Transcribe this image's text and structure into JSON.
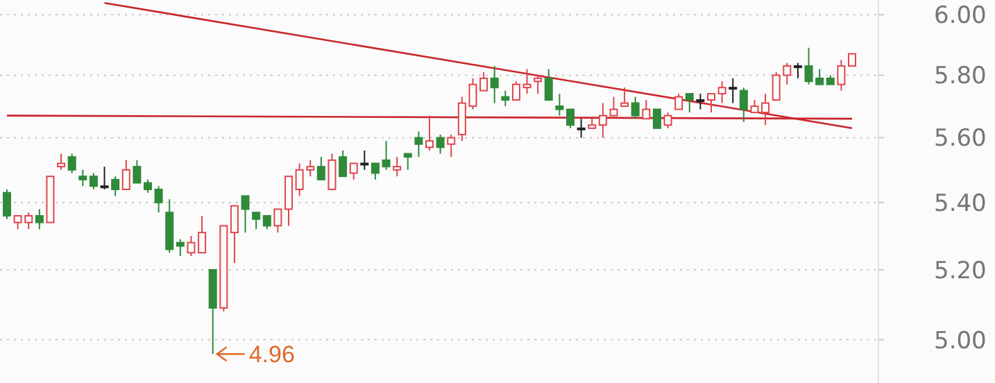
{
  "chart_data": {
    "type": "candlestick",
    "categories": [
      null,
      null,
      null,
      null,
      null,
      null,
      null,
      null,
      null,
      null,
      null,
      null,
      null,
      null,
      null,
      null,
      null,
      null,
      null,
      null,
      null,
      null,
      null,
      null,
      null,
      null,
      null,
      null,
      null,
      null,
      null,
      null,
      null,
      null,
      null,
      null,
      null,
      null,
      null,
      null,
      null,
      null,
      null,
      null,
      null,
      null,
      null,
      null,
      null,
      null,
      null,
      null,
      null,
      null,
      null,
      null,
      null,
      null,
      null,
      null,
      null,
      null,
      null,
      null,
      null,
      null,
      null,
      null,
      null,
      null,
      null,
      null,
      null,
      null,
      null,
      null,
      null,
      null,
      null
    ],
    "ohlc": [
      [
        5.43,
        5.44,
        5.35,
        5.36
      ],
      [
        5.34,
        5.36,
        5.32,
        5.36
      ],
      [
        5.34,
        5.37,
        5.32,
        5.36
      ],
      [
        5.36,
        5.38,
        5.32,
        5.34
      ],
      [
        5.34,
        5.48,
        5.34,
        5.48
      ],
      [
        5.51,
        5.55,
        5.5,
        5.52
      ],
      [
        5.54,
        5.55,
        5.49,
        5.5
      ],
      [
        5.48,
        5.5,
        5.45,
        5.47
      ],
      [
        5.48,
        5.49,
        5.44,
        5.45
      ],
      [
        5.45,
        5.51,
        5.44,
        5.45
      ],
      [
        5.47,
        5.48,
        5.42,
        5.44
      ],
      [
        5.44,
        5.53,
        5.44,
        5.5
      ],
      [
        5.51,
        5.53,
        5.46,
        5.46
      ],
      [
        5.46,
        5.47,
        5.43,
        5.44
      ],
      [
        5.44,
        5.45,
        5.37,
        5.4
      ],
      [
        5.37,
        5.41,
        5.25,
        5.26
      ],
      [
        5.28,
        5.29,
        5.24,
        5.27
      ],
      [
        5.25,
        5.3,
        5.24,
        5.28
      ],
      [
        5.25,
        5.36,
        5.25,
        5.31
      ],
      [
        5.2,
        5.2,
        4.96,
        5.09
      ],
      [
        5.09,
        5.33,
        5.08,
        5.33
      ],
      [
        5.31,
        5.39,
        5.22,
        5.39
      ],
      [
        5.42,
        5.42,
        5.31,
        5.38
      ],
      [
        5.37,
        5.37,
        5.32,
        5.35
      ],
      [
        5.36,
        5.36,
        5.32,
        5.33
      ],
      [
        5.33,
        5.38,
        5.31,
        5.38
      ],
      [
        5.38,
        5.48,
        5.33,
        5.48
      ],
      [
        5.44,
        5.52,
        5.42,
        5.5
      ],
      [
        5.5,
        5.53,
        5.48,
        5.51
      ],
      [
        5.51,
        5.54,
        5.47,
        5.47
      ],
      [
        5.44,
        5.55,
        5.44,
        5.53
      ],
      [
        5.54,
        5.56,
        5.48,
        5.48
      ],
      [
        5.49,
        5.52,
        5.47,
        5.52
      ],
      [
        5.52,
        5.56,
        5.5,
        5.52
      ],
      [
        5.52,
        5.52,
        5.47,
        5.49
      ],
      [
        5.53,
        5.59,
        5.5,
        5.51
      ],
      [
        5.5,
        5.54,
        5.48,
        5.51
      ],
      [
        5.55,
        5.55,
        5.5,
        5.54
      ],
      [
        5.6,
        5.62,
        5.54,
        5.58
      ],
      [
        5.57,
        5.67,
        5.56,
        5.59
      ],
      [
        5.6,
        5.61,
        5.55,
        5.57
      ],
      [
        5.58,
        5.61,
        5.54,
        5.6
      ],
      [
        5.61,
        5.73,
        5.59,
        5.71
      ],
      [
        5.7,
        5.79,
        5.69,
        5.77
      ],
      [
        5.75,
        5.81,
        5.75,
        5.79
      ],
      [
        5.79,
        5.83,
        5.71,
        5.76
      ],
      [
        5.73,
        5.75,
        5.7,
        5.72
      ],
      [
        5.72,
        5.78,
        5.72,
        5.77
      ],
      [
        5.76,
        5.82,
        5.74,
        5.77
      ],
      [
        5.78,
        5.8,
        5.74,
        5.79
      ],
      [
        5.79,
        5.82,
        5.72,
        5.72
      ],
      [
        5.7,
        5.74,
        5.67,
        5.69
      ],
      [
        5.69,
        5.69,
        5.63,
        5.64
      ],
      [
        5.63,
        5.66,
        5.6,
        5.63
      ],
      [
        5.63,
        5.66,
        5.63,
        5.64
      ],
      [
        5.64,
        5.71,
        5.6,
        5.67
      ],
      [
        5.67,
        5.73,
        5.67,
        5.69
      ],
      [
        5.7,
        5.76,
        5.7,
        5.71
      ],
      [
        5.71,
        5.73,
        5.66,
        5.67
      ],
      [
        5.66,
        5.72,
        5.66,
        5.69
      ],
      [
        5.69,
        5.69,
        5.63,
        5.63
      ],
      [
        5.64,
        5.68,
        5.63,
        5.67
      ],
      [
        5.69,
        5.74,
        5.69,
        5.73
      ],
      [
        5.74,
        5.74,
        5.68,
        5.72
      ],
      [
        5.72,
        5.74,
        5.69,
        5.72
      ],
      [
        5.72,
        5.74,
        5.68,
        5.74
      ],
      [
        5.74,
        5.78,
        5.71,
        5.76
      ],
      [
        5.76,
        5.79,
        5.71,
        5.76
      ],
      [
        5.75,
        5.76,
        5.65,
        5.69
      ],
      [
        5.68,
        5.72,
        5.68,
        5.7
      ],
      [
        5.68,
        5.74,
        5.64,
        5.71
      ],
      [
        5.72,
        5.81,
        5.72,
        5.8
      ],
      [
        5.8,
        5.84,
        5.77,
        5.83
      ],
      [
        5.83,
        5.84,
        5.79,
        5.83
      ],
      [
        5.83,
        5.89,
        5.77,
        5.78
      ],
      [
        5.79,
        5.82,
        5.77,
        5.77
      ],
      [
        5.79,
        5.8,
        5.77,
        5.77
      ],
      [
        5.77,
        5.85,
        5.75,
        5.83
      ],
      [
        5.83,
        5.87,
        5.83,
        5.87
      ]
    ],
    "colors": [
      "#2f8a3a",
      "#e0464b",
      "#e0464b",
      "#2f8a3a",
      "#e0464b",
      "#e0464b",
      "#2f8a3a",
      "#2f8a3a",
      "#2f8a3a",
      "#222222",
      "#2f8a3a",
      "#e0464b",
      "#2f8a3a",
      "#2f8a3a",
      "#2f8a3a",
      "#2f8a3a",
      "#2f8a3a",
      "#e0464b",
      "#e0464b",
      "#2f8a3a",
      "#e0464b",
      "#e0464b",
      "#2f8a3a",
      "#2f8a3a",
      "#2f8a3a",
      "#e0464b",
      "#e0464b",
      "#e0464b",
      "#e0464b",
      "#2f8a3a",
      "#e0464b",
      "#2f8a3a",
      "#e0464b",
      "#222222",
      "#2f8a3a",
      "#2f8a3a",
      "#e0464b",
      "#2f8a3a",
      "#2f8a3a",
      "#e0464b",
      "#2f8a3a",
      "#e0464b",
      "#e0464b",
      "#e0464b",
      "#e0464b",
      "#2f8a3a",
      "#2f8a3a",
      "#e0464b",
      "#e0464b",
      "#e0464b",
      "#2f8a3a",
      "#2f8a3a",
      "#2f8a3a",
      "#222222",
      "#e0464b",
      "#e0464b",
      "#e0464b",
      "#e0464b",
      "#2f8a3a",
      "#e0464b",
      "#2f8a3a",
      "#e0464b",
      "#e0464b",
      "#2f8a3a",
      "#222222",
      "#e0464b",
      "#e0464b",
      "#222222",
      "#2f8a3a",
      "#e0464b",
      "#e0464b",
      "#e0464b",
      "#e0464b",
      "#222222",
      "#2f8a3a",
      "#2f8a3a",
      "#2f8a3a",
      "#e0464b",
      "#e0464b"
    ],
    "series": [
      {
        "type": "line",
        "color": "#c9252c",
        "values": [
          null,
          null,
          null,
          null,
          null,
          null,
          null,
          null,
          null,
          6.04,
          null,
          null,
          null,
          null,
          null,
          null,
          null,
          null,
          null,
          null,
          null,
          null,
          null,
          null,
          null,
          null,
          null,
          null,
          null,
          null,
          null,
          null,
          null,
          null,
          null,
          null,
          null,
          null,
          null,
          null,
          null,
          null,
          null,
          null,
          null,
          null,
          null,
          null,
          null,
          null,
          null,
          null,
          null,
          null,
          null,
          null,
          null,
          null,
          null,
          null,
          null,
          null,
          null,
          null,
          null,
          null,
          null,
          null,
          null,
          null,
          null,
          null,
          null,
          null,
          null,
          null,
          null,
          null,
          5.63
        ]
      },
      {
        "type": "line",
        "color": "#c9252c",
        "values": [
          5.67,
          null,
          null,
          null,
          null,
          null,
          null,
          null,
          null,
          null,
          null,
          null,
          null,
          null,
          null,
          null,
          null,
          null,
          null,
          null,
          null,
          null,
          null,
          null,
          null,
          null,
          null,
          null,
          null,
          null,
          null,
          null,
          null,
          null,
          null,
          null,
          null,
          null,
          null,
          null,
          null,
          null,
          null,
          null,
          null,
          null,
          null,
          null,
          null,
          null,
          null,
          null,
          null,
          null,
          null,
          null,
          null,
          null,
          null,
          null,
          null,
          null,
          null,
          null,
          null,
          null,
          null,
          null,
          null,
          null,
          null,
          null,
          null,
          null,
          null,
          null,
          null,
          null,
          5.66
        ]
      }
    ],
    "ylim": [
      4.88,
      6.05
    ],
    "log": true,
    "yticks": [
      {
        "value": 5,
        "label": "5.00"
      },
      {
        "value": 5.2,
        "label": "5.20"
      },
      {
        "value": 5.4,
        "label": "5.40"
      },
      {
        "value": 5.6,
        "label": "5.60"
      },
      {
        "value": 5.8,
        "label": "5.80"
      },
      {
        "value": 6,
        "label": "6.00"
      }
    ],
    "grid": "y",
    "line_style": "solid",
    "annotations": [
      "4.96"
    ]
  }
}
